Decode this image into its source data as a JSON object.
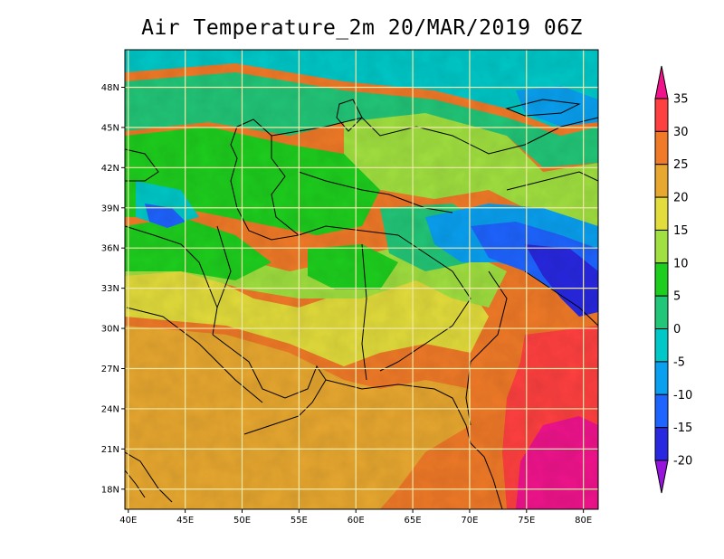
{
  "title": "Air Temperature_2m 20/MAR/2019 06Z",
  "map": {
    "lon_range": [
      39.7,
      81.3
    ],
    "lat_range": [
      16.5,
      50.8
    ],
    "x_ticks": [
      {
        "lon": 40,
        "label": "40E"
      },
      {
        "lon": 45,
        "label": "45E"
      },
      {
        "lon": 50,
        "label": "50E"
      },
      {
        "lon": 55,
        "label": "55E"
      },
      {
        "lon": 60,
        "label": "60E"
      },
      {
        "lon": 65,
        "label": "65E"
      },
      {
        "lon": 70,
        "label": "70E"
      },
      {
        "lon": 75,
        "label": "75E"
      },
      {
        "lon": 80,
        "label": "80E"
      }
    ],
    "y_ticks": [
      {
        "lat": 18,
        "label": "18N"
      },
      {
        "lat": 21,
        "label": "21N"
      },
      {
        "lat": 24,
        "label": "24N"
      },
      {
        "lat": 27,
        "label": "27N"
      },
      {
        "lat": 30,
        "label": "30N"
      },
      {
        "lat": 33,
        "label": "33N"
      },
      {
        "lat": 36,
        "label": "36N"
      },
      {
        "lat": 39,
        "label": "39N"
      },
      {
        "lat": 42,
        "label": "42N"
      },
      {
        "lat": 45,
        "label": "45N"
      },
      {
        "lat": 48,
        "label": "48N"
      }
    ],
    "grid": true
  },
  "colorbar": {
    "levels": [
      {
        "label": "35",
        "color": "#ff4040"
      },
      {
        "label": "30",
        "color": "#f07a28"
      },
      {
        "label": "25",
        "color": "#e8a830"
      },
      {
        "label": "20",
        "color": "#e2dc3c"
      },
      {
        "label": "15",
        "color": "#a0e040"
      },
      {
        "label": "10",
        "color": "#1ece1e"
      },
      {
        "label": "5",
        "color": "#22c678"
      },
      {
        "label": "0",
        "color": "#00c8c8"
      },
      {
        "label": "-5",
        "color": "#0aa0f0"
      },
      {
        "label": "-10",
        "color": "#1e64ff"
      },
      {
        "label": "-15",
        "color": "#2828e0"
      },
      {
        "label": "-20",
        "color": "#8c00e0"
      }
    ],
    "top_color": "#f0148c",
    "bottom_color": "#9614dc"
  },
  "colors": {
    "warmest": "#f0148c",
    "coldest": "#9614dc",
    "grid": "#f0e8a8",
    "coast": "#000000"
  }
}
